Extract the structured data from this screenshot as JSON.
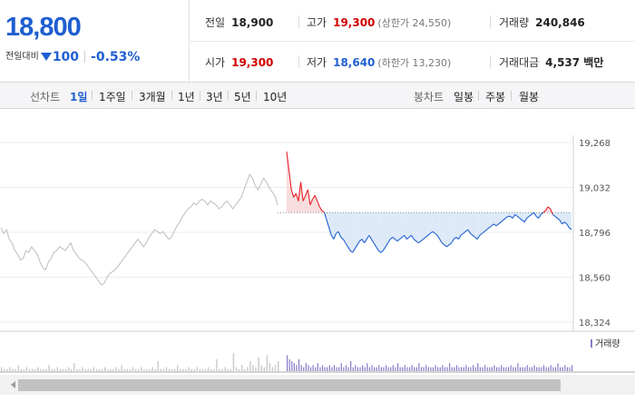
{
  "price": {
    "current": "18,800",
    "change_label": "전일대비",
    "change_amount": "100",
    "change_percent": "-0.53%"
  },
  "stats": {
    "prev_close": {
      "label": "전일",
      "value": "18,900"
    },
    "high": {
      "label": "고가",
      "value": "19,300",
      "limit": "(상한가 24,550)"
    },
    "volume": {
      "label": "거래량",
      "value": "240,846"
    },
    "open": {
      "label": "시가",
      "value": "19,300"
    },
    "low": {
      "label": "저가",
      "value": "18,640",
      "limit": "(하한가 13,230)"
    },
    "amount": {
      "label": "거래대금",
      "value": "4,537 백만"
    }
  },
  "line_tabs": {
    "label": "선차트",
    "items": [
      "1일",
      "1주일",
      "3개월",
      "1년",
      "3년",
      "5년",
      "10년"
    ],
    "active": "1일"
  },
  "candle_tabs": {
    "label": "봉차트",
    "items": [
      "일봉",
      "주봉",
      "월봉"
    ]
  },
  "volume_legend": "거래량",
  "colors": {
    "up": "#e8202a",
    "down": "#1f5fd1",
    "prev_day": "#bdbdbd",
    "fill_down": "#dde9f8",
    "fill_up": "#f8dcdc"
  },
  "chart_data": {
    "type": "line",
    "y_ticks": [
      "19,268",
      "19,032",
      "18,796",
      "18,560",
      "18,324"
    ],
    "ylim": [
      18324,
      19268
    ],
    "reference_price": 18900,
    "previous_day_series": [
      18820,
      18790,
      18810,
      18760,
      18740,
      18700,
      18680,
      18650,
      18660,
      18700,
      18690,
      18720,
      18700,
      18680,
      18640,
      18610,
      18600,
      18640,
      18660,
      18690,
      18700,
      18720,
      18710,
      18700,
      18720,
      18740,
      18700,
      18680,
      18660,
      18650,
      18640,
      18620,
      18600,
      18580,
      18560,
      18540,
      18520,
      18530,
      18560,
      18580,
      18590,
      18600,
      18620,
      18640,
      18660,
      18680,
      18700,
      18720,
      18740,
      18760,
      18740,
      18720,
      18740,
      18770,
      18790,
      18810,
      18800,
      18790,
      18800,
      18780,
      18760,
      18770,
      18800,
      18830,
      18850,
      18880,
      18900,
      18920,
      18930,
      18950,
      18940,
      18960,
      18970,
      18960,
      18940,
      18960,
      18950,
      18940,
      18920,
      18930,
      18950,
      18960,
      18940,
      18920,
      18940,
      18960,
      18980,
      19020,
      19060,
      19100,
      19080,
      19040,
      19020,
      19050,
      19080,
      19060,
      19030,
      19010,
      18990,
      18940
    ],
    "today_series": [
      19220,
      19120,
      19020,
      18980,
      19000,
      18960,
      19060,
      18960,
      18990,
      19020,
      18940,
      18970,
      18990,
      18960,
      18930,
      18910,
      18900,
      18860,
      18820,
      18780,
      18760,
      18790,
      18800,
      18770,
      18760,
      18740,
      18720,
      18700,
      18690,
      18710,
      18730,
      18750,
      18760,
      18740,
      18760,
      18780,
      18760,
      18740,
      18720,
      18700,
      18690,
      18700,
      18720,
      18740,
      18760,
      18770,
      18760,
      18750,
      18760,
      18770,
      18780,
      18760,
      18770,
      18780,
      18760,
      18750,
      18740,
      18750,
      18760,
      18770,
      18780,
      18790,
      18800,
      18790,
      18780,
      18760,
      18740,
      18730,
      18720,
      18730,
      18740,
      18760,
      18770,
      18760,
      18780,
      18790,
      18800,
      18810,
      18790,
      18780,
      18770,
      18760,
      18780,
      18790,
      18800,
      18810,
      18820,
      18830,
      18840,
      18830,
      18840,
      18850,
      18860,
      18870,
      18880,
      18880,
      18870,
      18890,
      18880,
      18870,
      18860,
      18850,
      18870,
      18880,
      18890,
      18900,
      18880,
      18870,
      18890,
      18900,
      18910,
      18930,
      18920,
      18890,
      18880,
      18870,
      18860,
      18840,
      18850,
      18840,
      18820,
      18810
    ],
    "volume_series": [
      2,
      1,
      1,
      2,
      1,
      1,
      3,
      1,
      1,
      2,
      1,
      1,
      1,
      2,
      1,
      1,
      1,
      3,
      1,
      1,
      2,
      1,
      1,
      1,
      2,
      1,
      4,
      1,
      1,
      2,
      1,
      1,
      1,
      2,
      1,
      1,
      1,
      2,
      1,
      1,
      1,
      2,
      1,
      3,
      1,
      1,
      1,
      2,
      1,
      1,
      2,
      1,
      1,
      1,
      2,
      1,
      5,
      1,
      1,
      2,
      1,
      1,
      1,
      3,
      1,
      1,
      1,
      2,
      1,
      1,
      2,
      1,
      1,
      1,
      2,
      1,
      1,
      6,
      1,
      1,
      2,
      1,
      1,
      9,
      2,
      1,
      3,
      1,
      2,
      5,
      3,
      2,
      7,
      3,
      2,
      8,
      4,
      2,
      3,
      5
    ],
    "today_volume_series": [
      8,
      6,
      5,
      4,
      3,
      6,
      3,
      2,
      4,
      3,
      2,
      3,
      2,
      4,
      2,
      3,
      2,
      2,
      3,
      2,
      3,
      2,
      2,
      4,
      2,
      3,
      2,
      5,
      2,
      3,
      2,
      2,
      3,
      2,
      4,
      2,
      3,
      2,
      2,
      3,
      2,
      2,
      3,
      2,
      2,
      3,
      2,
      4,
      2,
      2,
      3,
      2,
      2,
      3,
      2,
      2,
      4,
      2,
      2,
      3,
      2,
      2,
      2,
      3,
      2,
      2,
      3,
      2,
      2,
      4,
      2,
      2,
      3,
      2,
      2,
      2,
      3,
      2,
      2,
      3,
      2,
      4,
      2,
      2,
      3,
      2,
      2,
      2,
      3,
      2,
      2,
      3,
      2,
      2,
      2,
      3,
      2,
      2,
      4,
      2,
      2,
      2,
      3,
      2,
      2,
      3,
      2,
      2,
      2,
      3,
      2,
      2,
      3,
      2,
      2,
      4,
      2,
      2,
      3,
      2,
      2,
      3
    ]
  }
}
